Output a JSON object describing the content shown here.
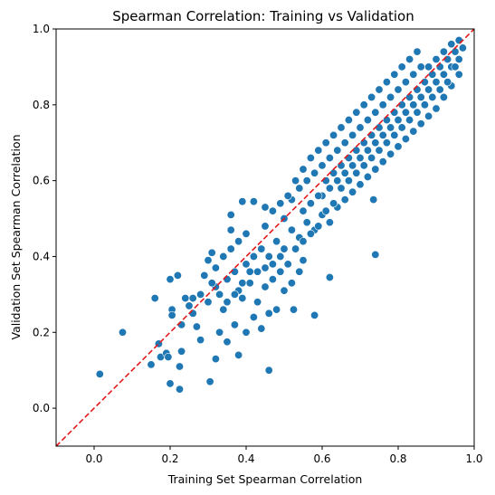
{
  "chart_data": {
    "type": "scatter",
    "title": "Spearman Correlation: Training vs Validation",
    "xlabel": "Training Set Spearman Correlation",
    "ylabel": "Validation Set Spearman Correlation",
    "xlim": [
      -0.1,
      1.0
    ],
    "ylim": [
      -0.1,
      1.0
    ],
    "xticks": [
      0.0,
      0.2,
      0.4,
      0.6,
      0.8,
      1.0
    ],
    "yticks": [
      0.0,
      0.2,
      0.4,
      0.6,
      0.8,
      1.0
    ],
    "xtick_labels": [
      "0.0",
      "0.2",
      "0.4",
      "0.6",
      "0.8",
      "1.0"
    ],
    "ytick_labels": [
      "0.0",
      "0.2",
      "0.4",
      "0.6",
      "0.8",
      "1.0"
    ],
    "grid": false,
    "point_color": "#1f77b4",
    "reference_line": {
      "style": "dashed",
      "color": "#e31a1c",
      "from": [
        -0.1,
        -0.1
      ],
      "to": [
        1.0,
        1.0
      ]
    },
    "points": [
      [
        0.015,
        0.09
      ],
      [
        0.075,
        0.2
      ],
      [
        0.16,
        0.29
      ],
      [
        0.15,
        0.115
      ],
      [
        0.17,
        0.17
      ],
      [
        0.175,
        0.135
      ],
      [
        0.19,
        0.145
      ],
      [
        0.195,
        0.135
      ],
      [
        0.2,
        0.065
      ],
      [
        0.225,
        0.05
      ],
      [
        0.225,
        0.11
      ],
      [
        0.2,
        0.34
      ],
      [
        0.205,
        0.26
      ],
      [
        0.205,
        0.245
      ],
      [
        0.23,
        0.15
      ],
      [
        0.305,
        0.07
      ],
      [
        0.46,
        0.1
      ],
      [
        0.38,
        0.14
      ],
      [
        0.74,
        0.405
      ],
      [
        0.735,
        0.55
      ],
      [
        0.36,
        0.51
      ],
      [
        0.62,
        0.345
      ],
      [
        0.58,
        0.245
      ],
      [
        0.39,
        0.545
      ],
      [
        0.42,
        0.545
      ],
      [
        0.45,
        0.53
      ],
      [
        0.55,
        0.39
      ],
      [
        0.54,
        0.36
      ],
      [
        0.3,
        0.39
      ],
      [
        0.31,
        0.41
      ],
      [
        0.22,
        0.35
      ],
      [
        0.23,
        0.22
      ],
      [
        0.26,
        0.25
      ],
      [
        0.27,
        0.215
      ],
      [
        0.28,
        0.18
      ],
      [
        0.32,
        0.13
      ],
      [
        0.33,
        0.2
      ],
      [
        0.35,
        0.175
      ],
      [
        0.52,
        0.33
      ],
      [
        0.525,
        0.26
      ],
      [
        0.5,
        0.31
      ],
      [
        0.48,
        0.26
      ],
      [
        0.46,
        0.25
      ],
      [
        0.44,
        0.21
      ],
      [
        0.42,
        0.24
      ],
      [
        0.4,
        0.2
      ],
      [
        0.37,
        0.22
      ],
      [
        0.34,
        0.26
      ],
      [
        0.32,
        0.32
      ],
      [
        0.3,
        0.28
      ],
      [
        0.28,
        0.3
      ],
      [
        0.26,
        0.29
      ],
      [
        0.25,
        0.27
      ],
      [
        0.24,
        0.29
      ],
      [
        0.29,
        0.35
      ],
      [
        0.31,
        0.33
      ],
      [
        0.33,
        0.3
      ],
      [
        0.35,
        0.34
      ],
      [
        0.37,
        0.36
      ],
      [
        0.38,
        0.31
      ],
      [
        0.39,
        0.29
      ],
      [
        0.41,
        0.33
      ],
      [
        0.43,
        0.28
      ],
      [
        0.45,
        0.32
      ],
      [
        0.47,
        0.34
      ],
      [
        0.49,
        0.36
      ],
      [
        0.4,
        0.38
      ],
      [
        0.42,
        0.4
      ],
      [
        0.44,
        0.42
      ],
      [
        0.46,
        0.4
      ],
      [
        0.48,
        0.44
      ],
      [
        0.5,
        0.42
      ],
      [
        0.36,
        0.42
      ],
      [
        0.38,
        0.44
      ],
      [
        0.4,
        0.46
      ],
      [
        0.34,
        0.4
      ],
      [
        0.32,
        0.37
      ],
      [
        0.36,
        0.47
      ],
      [
        0.52,
        0.47
      ],
      [
        0.54,
        0.45
      ],
      [
        0.56,
        0.49
      ],
      [
        0.58,
        0.47
      ],
      [
        0.6,
        0.51
      ],
      [
        0.62,
        0.49
      ],
      [
        0.64,
        0.53
      ],
      [
        0.66,
        0.55
      ],
      [
        0.68,
        0.57
      ],
      [
        0.7,
        0.59
      ],
      [
        0.72,
        0.61
      ],
      [
        0.74,
        0.63
      ],
      [
        0.76,
        0.65
      ],
      [
        0.78,
        0.67
      ],
      [
        0.8,
        0.69
      ],
      [
        0.82,
        0.71
      ],
      [
        0.84,
        0.73
      ],
      [
        0.86,
        0.75
      ],
      [
        0.88,
        0.77
      ],
      [
        0.9,
        0.79
      ],
      [
        0.92,
        0.82
      ],
      [
        0.94,
        0.85
      ],
      [
        0.96,
        0.88
      ],
      [
        0.5,
        0.5
      ],
      [
        0.52,
        0.55
      ],
      [
        0.54,
        0.58
      ],
      [
        0.56,
        0.6
      ],
      [
        0.58,
        0.62
      ],
      [
        0.6,
        0.64
      ],
      [
        0.62,
        0.66
      ],
      [
        0.64,
        0.68
      ],
      [
        0.66,
        0.7
      ],
      [
        0.68,
        0.72
      ],
      [
        0.7,
        0.74
      ],
      [
        0.72,
        0.76
      ],
      [
        0.74,
        0.78
      ],
      [
        0.76,
        0.8
      ],
      [
        0.78,
        0.82
      ],
      [
        0.8,
        0.84
      ],
      [
        0.82,
        0.86
      ],
      [
        0.84,
        0.88
      ],
      [
        0.86,
        0.9
      ],
      [
        0.88,
        0.9
      ],
      [
        0.9,
        0.92
      ],
      [
        0.92,
        0.94
      ],
      [
        0.94,
        0.96
      ],
      [
        0.96,
        0.97
      ],
      [
        0.45,
        0.48
      ],
      [
        0.47,
        0.52
      ],
      [
        0.49,
        0.54
      ],
      [
        0.51,
        0.56
      ],
      [
        0.53,
        0.6
      ],
      [
        0.55,
        0.63
      ],
      [
        0.57,
        0.66
      ],
      [
        0.59,
        0.68
      ],
      [
        0.61,
        0.7
      ],
      [
        0.63,
        0.72
      ],
      [
        0.65,
        0.74
      ],
      [
        0.67,
        0.76
      ],
      [
        0.69,
        0.78
      ],
      [
        0.71,
        0.8
      ],
      [
        0.73,
        0.82
      ],
      [
        0.75,
        0.84
      ],
      [
        0.77,
        0.86
      ],
      [
        0.79,
        0.88
      ],
      [
        0.81,
        0.9
      ],
      [
        0.83,
        0.92
      ],
      [
        0.85,
        0.94
      ],
      [
        0.6,
        0.56
      ],
      [
        0.62,
        0.58
      ],
      [
        0.64,
        0.6
      ],
      [
        0.66,
        0.62
      ],
      [
        0.68,
        0.64
      ],
      [
        0.7,
        0.66
      ],
      [
        0.72,
        0.68
      ],
      [
        0.74,
        0.7
      ],
      [
        0.76,
        0.72
      ],
      [
        0.78,
        0.74
      ],
      [
        0.8,
        0.76
      ],
      [
        0.82,
        0.78
      ],
      [
        0.84,
        0.8
      ],
      [
        0.86,
        0.82
      ],
      [
        0.88,
        0.84
      ],
      [
        0.9,
        0.86
      ],
      [
        0.92,
        0.88
      ],
      [
        0.94,
        0.9
      ],
      [
        0.55,
        0.52
      ],
      [
        0.57,
        0.54
      ],
      [
        0.59,
        0.56
      ],
      [
        0.61,
        0.6
      ],
      [
        0.63,
        0.62
      ],
      [
        0.65,
        0.64
      ],
      [
        0.67,
        0.66
      ],
      [
        0.69,
        0.68
      ],
      [
        0.71,
        0.7
      ],
      [
        0.73,
        0.72
      ],
      [
        0.75,
        0.74
      ],
      [
        0.77,
        0.76
      ],
      [
        0.79,
        0.78
      ],
      [
        0.81,
        0.8
      ],
      [
        0.83,
        0.82
      ],
      [
        0.85,
        0.84
      ],
      [
        0.87,
        0.86
      ],
      [
        0.89,
        0.88
      ],
      [
        0.91,
        0.9
      ],
      [
        0.93,
        0.92
      ],
      [
        0.95,
        0.94
      ],
      [
        0.97,
        0.95
      ],
      [
        0.35,
        0.28
      ],
      [
        0.37,
        0.3
      ],
      [
        0.39,
        0.33
      ],
      [
        0.41,
        0.36
      ],
      [
        0.43,
        0.36
      ],
      [
        0.45,
        0.37
      ],
      [
        0.47,
        0.38
      ],
      [
        0.49,
        0.4
      ],
      [
        0.51,
        0.38
      ],
      [
        0.53,
        0.42
      ],
      [
        0.55,
        0.44
      ],
      [
        0.57,
        0.46
      ],
      [
        0.59,
        0.48
      ],
      [
        0.61,
        0.52
      ],
      [
        0.63,
        0.54
      ],
      [
        0.65,
        0.58
      ],
      [
        0.67,
        0.6
      ],
      [
        0.69,
        0.62
      ],
      [
        0.71,
        0.64
      ],
      [
        0.73,
        0.66
      ],
      [
        0.75,
        0.68
      ],
      [
        0.77,
        0.7
      ],
      [
        0.79,
        0.72
      ],
      [
        0.81,
        0.74
      ],
      [
        0.83,
        0.76
      ],
      [
        0.85,
        0.78
      ],
      [
        0.87,
        0.8
      ],
      [
        0.89,
        0.82
      ],
      [
        0.91,
        0.84
      ],
      [
        0.93,
        0.86
      ],
      [
        0.95,
        0.9
      ],
      [
        0.96,
        0.92
      ]
    ]
  }
}
